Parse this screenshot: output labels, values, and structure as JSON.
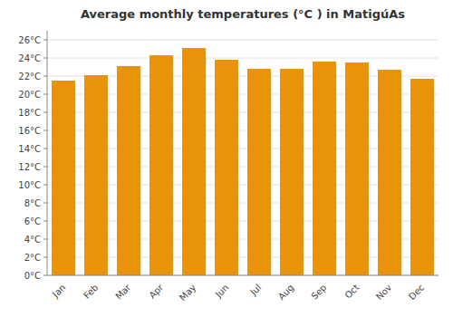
{
  "chart_data": {
    "type": "bar",
    "title": "Average monthly temperatures (°C ) in MatigúAs",
    "categories": [
      "Jan",
      "Feb",
      "Mar",
      "Apr",
      "May",
      "Jun",
      "Jul",
      "Aug",
      "Sep",
      "Oct",
      "Nov",
      "Dec"
    ],
    "values": [
      21.5,
      22.1,
      23.1,
      24.3,
      25.1,
      23.8,
      22.8,
      22.8,
      23.6,
      23.5,
      22.7,
      21.7
    ],
    "color": "#E8930A",
    "ylim": [
      0,
      27
    ],
    "yticks": [
      {
        "value": 0,
        "label": "0°C"
      },
      {
        "value": 2,
        "label": "2°C"
      },
      {
        "value": 4,
        "label": "4°C"
      },
      {
        "value": 6,
        "label": "6°C"
      },
      {
        "value": 8,
        "label": "8°C"
      },
      {
        "value": 10,
        "label": "10°C"
      },
      {
        "value": 12,
        "label": "12°C"
      },
      {
        "value": 14,
        "label": "14°C"
      },
      {
        "value": 16,
        "label": "16°C"
      },
      {
        "value": 18,
        "label": "18°C"
      },
      {
        "value": 20,
        "label": "20°C"
      },
      {
        "value": 22,
        "label": "22°C"
      },
      {
        "value": 24,
        "label": "24°C"
      },
      {
        "value": 26,
        "label": "26°C"
      }
    ],
    "grid": true
  }
}
